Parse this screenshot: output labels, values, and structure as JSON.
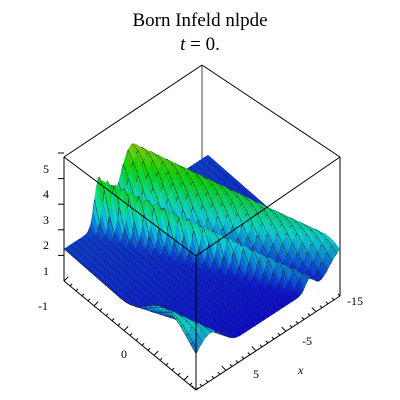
{
  "chart_data": {
    "type": "surface3d",
    "title": "Born  Infeld  nlpde",
    "subtitle": {
      "var": "t",
      "rest": " = 0."
    },
    "xlabel": "x",
    "ylabel": "",
    "zlabel": "",
    "z_ticks": [
      "1",
      "2",
      "3",
      "4",
      "5"
    ],
    "y_ticks": [
      "-1",
      "0"
    ],
    "x_ticks": [
      "-15",
      "-5",
      "5"
    ],
    "zlim": [
      0,
      5.5
    ],
    "boxed": true,
    "colormap": "rainbow (hue by height)"
  }
}
